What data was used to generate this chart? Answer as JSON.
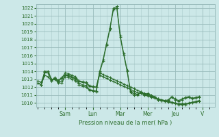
{
  "xlabel": "Pression niveau de la mer( hPa )",
  "background_color": "#cce8e8",
  "grid_color": "#aacccc",
  "grid_color_major": "#99bbbb",
  "line_color": "#2d6e2d",
  "ylim": [
    1009.5,
    1022.5
  ],
  "yticks": [
    1010,
    1011,
    1012,
    1013,
    1014,
    1015,
    1016,
    1017,
    1018,
    1019,
    1020,
    1021,
    1022
  ],
  "day_labels": [
    "Sam",
    "Lun",
    "Mar",
    "Mer",
    "Jeu",
    "V"
  ],
  "day_positions": [
    8,
    16,
    24,
    32,
    40,
    48
  ],
  "xlim": [
    -0.5,
    51.5
  ],
  "series": [
    [
      1012.5,
      1012.3,
      1014.0,
      1014.0,
      1013.0,
      1013.0,
      1012.5,
      1012.5,
      1013.5,
      1013.4,
      1013.2,
      1013.0,
      1012.5,
      1012.3,
      1012.2,
      1011.7,
      1011.6,
      1011.5,
      1014.0,
      1015.5,
      1017.5,
      1019.5,
      1022.0,
      1022.2,
      1018.5,
      1016.3,
      1014.2,
      1011.5,
      1011.2,
      1011.1,
      1011.4,
      1011.1,
      1011.2,
      1011.0,
      1010.8,
      1010.5,
      1010.4,
      1010.3,
      1010.4,
      1010.8,
      1010.5,
      1010.3,
      1010.5,
      1010.7,
      1010.8,
      1010.6,
      1010.7,
      1010.8
    ],
    [
      1012.8,
      1012.6,
      1013.9,
      1013.8,
      1012.9,
      1013.2,
      1012.8,
      1013.1,
      1013.6,
      1013.5,
      1013.3,
      1013.1,
      1012.7,
      1012.6,
      1012.5,
      1012.1,
      1012.0,
      1012.0,
      1013.5,
      1013.3,
      1013.1,
      1012.9,
      1012.7,
      1012.5,
      1012.3,
      1012.1,
      1011.9,
      1011.7,
      1011.5,
      1011.3,
      1011.2,
      1011.0,
      1010.9,
      1010.7,
      1010.6,
      1010.4,
      1010.3,
      1010.2,
      1010.1,
      1010.0,
      1009.9,
      1009.8,
      1009.8,
      1009.8,
      1009.9,
      1010.0,
      1010.1,
      1010.2
    ],
    [
      1012.5,
      1012.3,
      1013.5,
      1013.3,
      1012.8,
      1013.1,
      1012.9,
      1013.2,
      1013.8,
      1013.7,
      1013.5,
      1013.3,
      1012.8,
      1012.7,
      1012.6,
      1012.2,
      1012.1,
      1012.0,
      1013.8,
      1013.6,
      1013.4,
      1013.2,
      1013.0,
      1012.8,
      1012.6,
      1012.4,
      1012.2,
      1012.0,
      1011.8,
      1011.6,
      1011.4,
      1011.2,
      1011.0,
      1010.8,
      1010.7,
      1010.5,
      1010.4,
      1010.3,
      1010.2,
      1010.1,
      1010.0,
      1009.9,
      1009.9,
      1009.9,
      1010.0,
      1010.1,
      1010.2,
      1010.3
    ],
    [
      1012.5,
      1012.3,
      1013.8,
      1013.8,
      1012.8,
      1013.1,
      1012.6,
      1012.8,
      1013.3,
      1013.2,
      1013.0,
      1012.8,
      1012.3,
      1012.1,
      1012.0,
      1011.6,
      1011.5,
      1011.4,
      1013.8,
      1015.3,
      1017.3,
      1019.3,
      1021.8,
      1022.0,
      1018.3,
      1016.1,
      1014.0,
      1011.3,
      1011.0,
      1011.0,
      1011.3,
      1011.0,
      1011.1,
      1010.9,
      1010.7,
      1010.4,
      1010.3,
      1010.2,
      1010.3,
      1010.7,
      1010.4,
      1010.2,
      1010.4,
      1010.6,
      1010.7,
      1010.5,
      1010.6,
      1010.7
    ]
  ],
  "marker": "+",
  "markersize": 3.0,
  "linewidth": 0.8
}
